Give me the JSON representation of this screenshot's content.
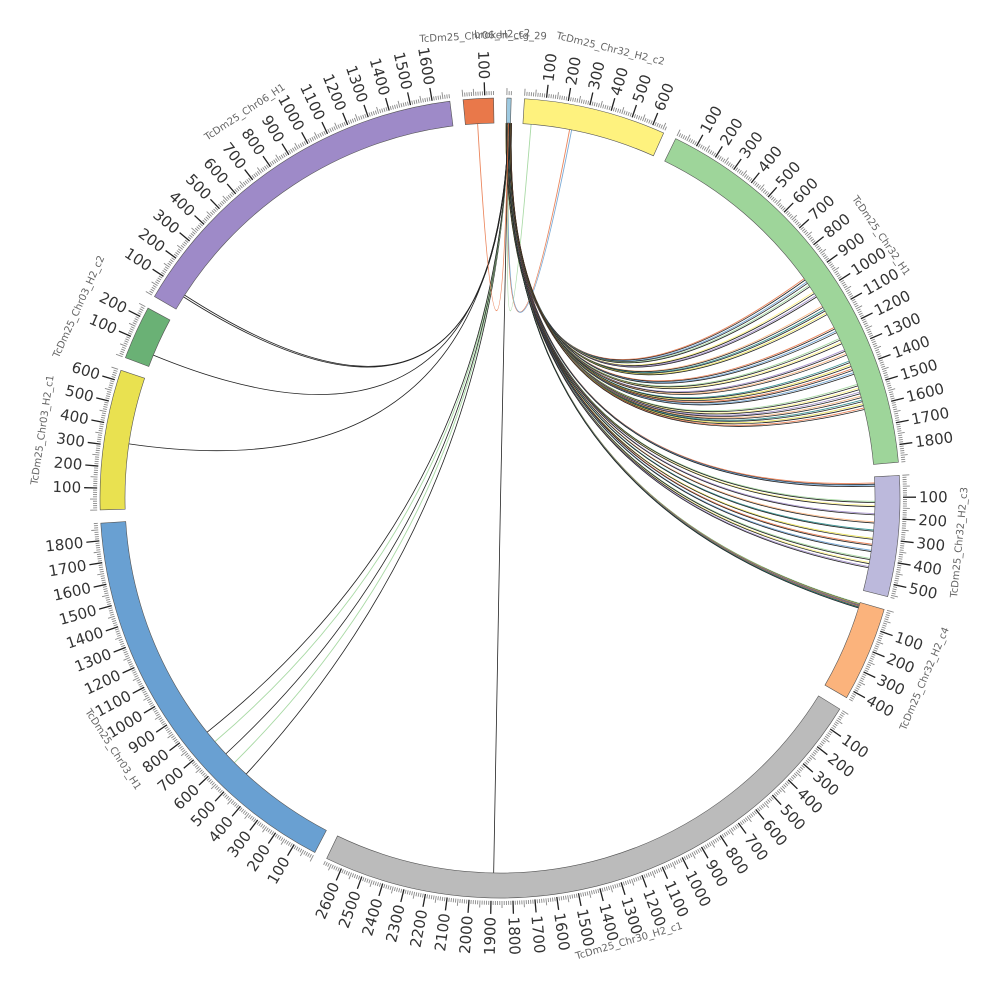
{
  "diagram": {
    "type": "circos",
    "segments": [
      {
        "name": "TcDm25_Chr06_H2_c2",
        "length": 140,
        "color": "#e9784a",
        "ticks": [
          100
        ]
      },
      {
        "name": "broken_ctg_29",
        "length": 20,
        "color": "#9ecae1",
        "ticks": []
      },
      {
        "name": "TcDm25_Chr32_H2_c2",
        "length": 660,
        "color": "#fef27e",
        "ticks": [
          100,
          200,
          300,
          400,
          500,
          600
        ]
      },
      {
        "name": "TcDm25_Chr32_H1",
        "length": 1880,
        "color": "#9ed59a",
        "ticks": [
          100,
          200,
          300,
          400,
          500,
          600,
          700,
          800,
          900,
          1000,
          1100,
          1200,
          1300,
          1400,
          1500,
          1600,
          1700,
          1800
        ]
      },
      {
        "name": "TcDm25_Chr32_H2_c3",
        "length": 560,
        "color": "#bcb9dc",
        "ticks": [
          100,
          200,
          300,
          400,
          500
        ]
      },
      {
        "name": "TcDm25_Chr32_H2_c4",
        "length": 440,
        "color": "#fbb37c",
        "ticks": [
          100,
          200,
          300,
          400
        ]
      },
      {
        "name": "TcDm25_Chr30_H2_c1",
        "length": 2680,
        "color": "#bbbbbb",
        "ticks": [
          100,
          200,
          300,
          400,
          500,
          600,
          700,
          800,
          900,
          1000,
          1100,
          1200,
          1300,
          1400,
          1500,
          1600,
          1700,
          1800,
          1900,
          2000,
          2100,
          2200,
          2300,
          2400,
          2500,
          2600
        ]
      },
      {
        "name": "TcDm25_Chr03_H1",
        "length": 1880,
        "color": "#69a0d2",
        "ticks": [
          100,
          200,
          300,
          400,
          500,
          600,
          700,
          800,
          900,
          1000,
          1100,
          1200,
          1300,
          1400,
          1500,
          1600,
          1700,
          1800
        ]
      },
      {
        "name": "TcDm25_Chr03_H2_c1",
        "length": 650,
        "color": "#e9e150",
        "ticks": [
          100,
          200,
          300,
          400,
          500,
          600
        ]
      },
      {
        "name": "TcDm25_Chr03_H2_c2",
        "length": 250,
        "color": "#6ab175",
        "ticks": [
          100,
          200
        ]
      },
      {
        "name": "TcDm25_Chr06_H1",
        "length": 1680,
        "color": "#9e8ac8",
        "ticks": [
          100,
          200,
          300,
          400,
          500,
          600,
          700,
          800,
          900,
          1000,
          1100,
          1200,
          1300,
          1400,
          1500,
          1600
        ]
      }
    ],
    "link_colors": [
      "#e9784a",
      "#69a0d2",
      "#9ed59a",
      "#fef27e",
      "#9e8ac8",
      "#fbb37c",
      "#2b8c8c",
      "#e9e150"
    ]
  }
}
